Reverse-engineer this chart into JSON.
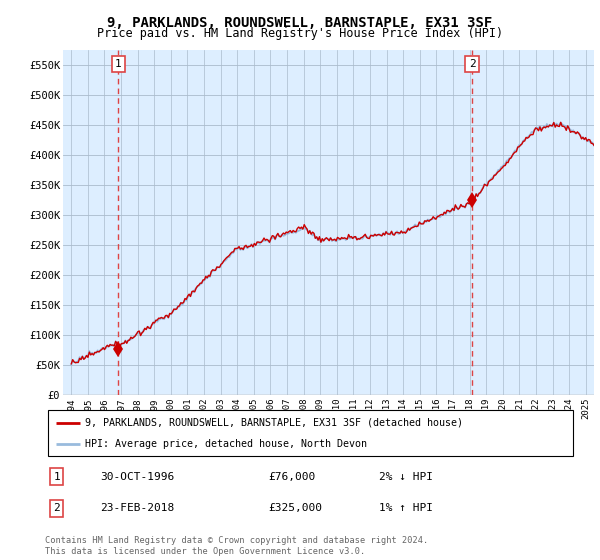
{
  "title": "9, PARKLANDS, ROUNDSWELL, BARNSTAPLE, EX31 3SF",
  "subtitle": "Price paid vs. HM Land Registry's House Price Index (HPI)",
  "ylabel_ticks": [
    "£0",
    "£50K",
    "£100K",
    "£150K",
    "£200K",
    "£250K",
    "£300K",
    "£350K",
    "£400K",
    "£450K",
    "£500K",
    "£550K"
  ],
  "ytick_values": [
    0,
    50000,
    100000,
    150000,
    200000,
    250000,
    300000,
    350000,
    400000,
    450000,
    500000,
    550000
  ],
  "ylim": [
    0,
    575000
  ],
  "xmin": 1993.5,
  "xmax": 2025.5,
  "sale1_date": 1996.83,
  "sale1_price": 76000,
  "sale1_label": "1",
  "sale1_date_str": "30-OCT-1996",
  "sale1_price_str": "£76,000",
  "sale1_hpi_str": "2% ↓ HPI",
  "sale2_date": 2018.15,
  "sale2_price": 325000,
  "sale2_label": "2",
  "sale2_date_str": "23-FEB-2018",
  "sale2_price_str": "£325,000",
  "sale2_hpi_str": "1% ↑ HPI",
  "legend_line1": "9, PARKLANDS, ROUNDSWELL, BARNSTAPLE, EX31 3SF (detached house)",
  "legend_line2": "HPI: Average price, detached house, North Devon",
  "copyright": "Contains HM Land Registry data © Crown copyright and database right 2024.\nThis data is licensed under the Open Government Licence v3.0.",
  "line_color_red": "#cc0000",
  "line_color_blue": "#99bbdd",
  "hatch_color": "#bbbbbb",
  "grid_color": "#aabbcc",
  "background_color": "#ffffff",
  "plot_bg_color": "#ddeeff",
  "marker_color": "#cc0000",
  "vline_color": "#dd4444"
}
